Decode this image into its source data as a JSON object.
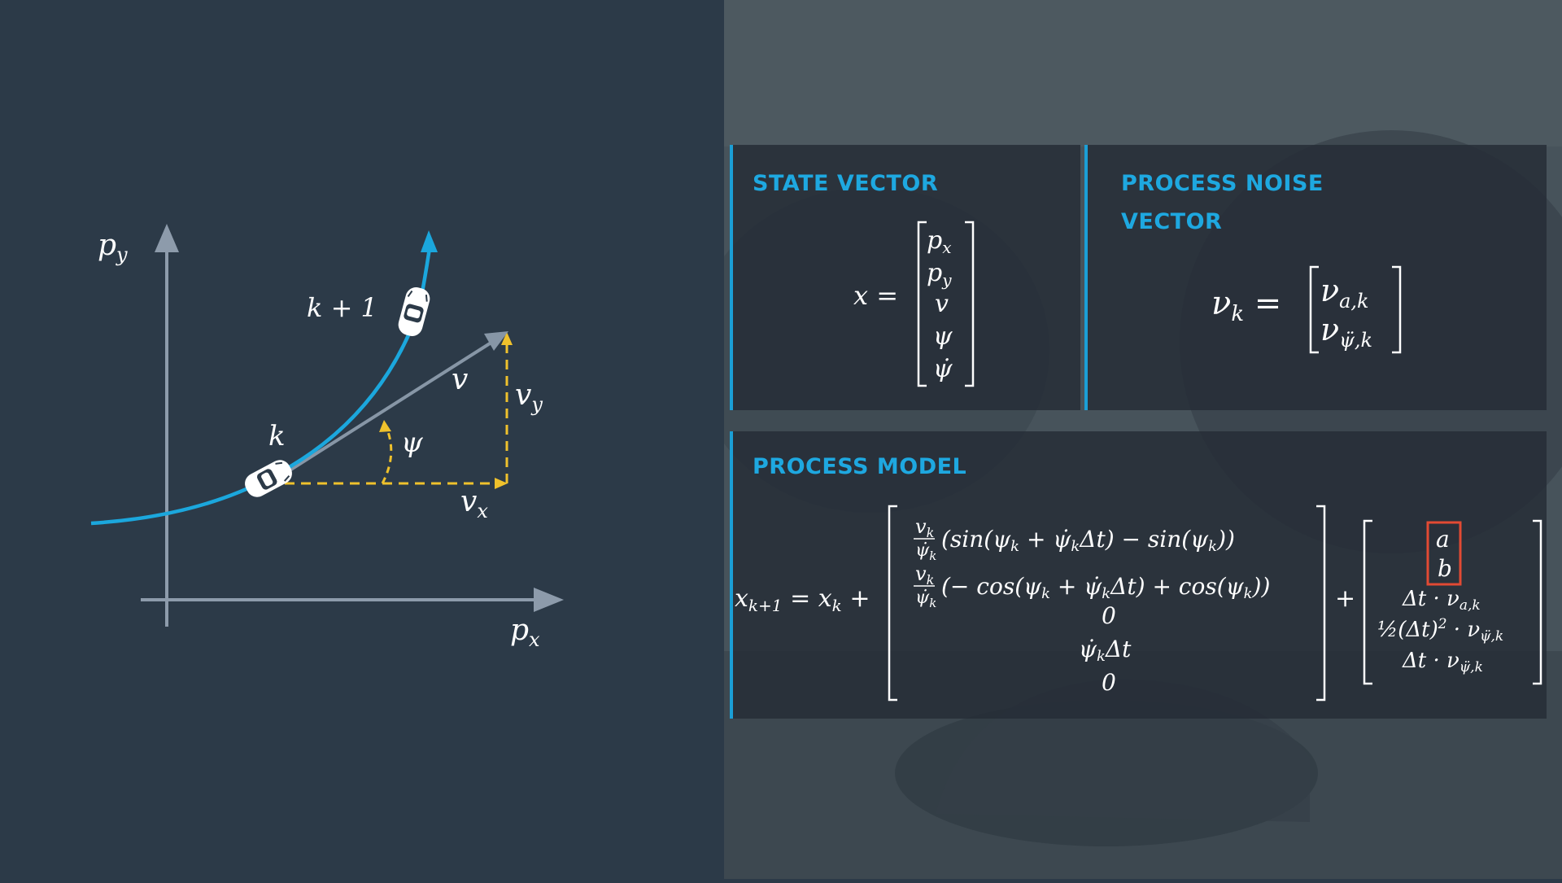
{
  "colors": {
    "left_background": "#2c3a48",
    "trajectory": "#1ba7dd",
    "axes": "#8d9bab",
    "velocity_vector": "#8796a6",
    "velocity_components": "#efc12c",
    "card_background": "#242c36",
    "card_accent": "#1b9fd6",
    "card_title": "#1ea8e0",
    "highlight_box": "#e24a33",
    "text": "#ffffff"
  },
  "diagram": {
    "axis_x_label": "p_x",
    "axis_y_label": "p_y",
    "label_k": "k",
    "label_k_plus_1": "k + 1",
    "label_v": "v",
    "label_vx": "v_x",
    "label_vy": "v_y",
    "label_psi": "ψ",
    "icons": [
      "car-icon-k",
      "car-icon-k-plus-1"
    ]
  },
  "state_vector": {
    "title": "STATE VECTOR",
    "lhs": "x =",
    "components": [
      "p_x",
      "p_y",
      "v",
      "ψ",
      "ψ̇"
    ]
  },
  "process_noise": {
    "title": "PROCESS NOISE VECTOR",
    "lhs": "ν_k =",
    "components": [
      "ν_{a,k}",
      "ν_{ψ̈,k}"
    ]
  },
  "process_model": {
    "title": "PROCESS MODEL",
    "lhs": "x_{k+1} = x_k +",
    "plus": "+",
    "matrix_rows": [
      "(v_k/ψ̇_k)(sin(ψ_k + ψ̇_k Δt) − sin(ψ_k))",
      "(v_k/ψ̇_k)(− cos(ψ_k + ψ̇_k Δt) + cos(ψ_k))",
      "0",
      "ψ̇_k Δt",
      "0"
    ],
    "noise_rows": [
      "a",
      "b",
      "Δt · ν_{a,k}",
      "½(Δt)² · ν_{ψ̈,k}",
      "Δt · ν_{ψ̈,k}"
    ],
    "highlighted_rows": [
      "a",
      "b"
    ]
  }
}
